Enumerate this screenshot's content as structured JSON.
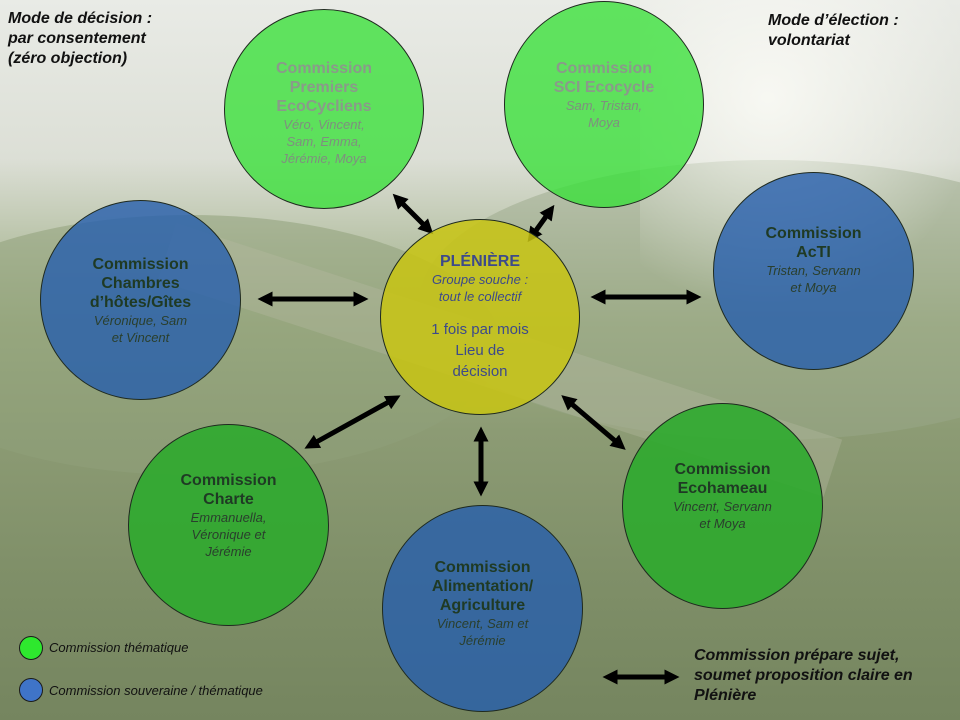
{
  "notes": {
    "decision": [
      "Mode de décision :",
      "par consentement",
      "(zéro objection)"
    ],
    "election": [
      "Mode d’élection :",
      "volontariat"
    ]
  },
  "center": {
    "title": "PLÉNIÈRE",
    "subtitle": [
      "Groupe souche :",
      "tout le collectif"
    ],
    "body": [
      "1 fois par mois",
      "Lieu de",
      "décision"
    ]
  },
  "commissions": [
    {
      "id": "premiers",
      "type": "thématique",
      "title": [
        "Commission",
        "Premiers",
        "EcoCycliens"
      ],
      "members": [
        "Véro, Vincent,",
        "Sam, Emma,",
        "Jérémie, Moya"
      ]
    },
    {
      "id": "sci",
      "type": "thématique",
      "title": [
        "Commission",
        "SCI Ecocycle"
      ],
      "members": [
        "Sam, Tristan,",
        "Moya"
      ]
    },
    {
      "id": "acti",
      "type": "souveraine",
      "title": [
        "Commission",
        "AcTI"
      ],
      "members": [
        "Tristan, Servann",
        "et Moya"
      ]
    },
    {
      "id": "ecohameau",
      "type": "thématique",
      "title": [
        "Commission",
        "Ecohameau"
      ],
      "members": [
        "Vincent, Servann",
        "et Moya"
      ]
    },
    {
      "id": "alimentation",
      "type": "souveraine",
      "title": [
        "Commission",
        "Alimentation/",
        "Agriculture"
      ],
      "members": [
        "Vincent, Sam et",
        "Jérémie"
      ]
    },
    {
      "id": "charte",
      "type": "thématique",
      "title": [
        "Commission",
        "Charte"
      ],
      "members": [
        "Emmanuella,",
        "Véronique et",
        "Jérémie"
      ]
    },
    {
      "id": "chambres",
      "type": "souveraine",
      "title": [
        "Commission",
        "Chambres",
        "d’hôtes/Gîtes"
      ],
      "members": [
        "Véronique, Sam",
        "et Vincent"
      ]
    }
  ],
  "legend": {
    "items": [
      {
        "label": "Commission thématique",
        "color": "#2ee82e"
      },
      {
        "label": "Commission souveraine / thématique",
        "color": "#3f74c8"
      }
    ],
    "arrow_caption": [
      "Commission prépare sujet,",
      "soumet proposition claire en",
      "Plénière"
    ]
  },
  "colors": {
    "light_green": "#39e039",
    "dark_green": "#2daa2d",
    "blue": "#265eac",
    "yellow": "#c8c412",
    "arrow": "#000000"
  }
}
